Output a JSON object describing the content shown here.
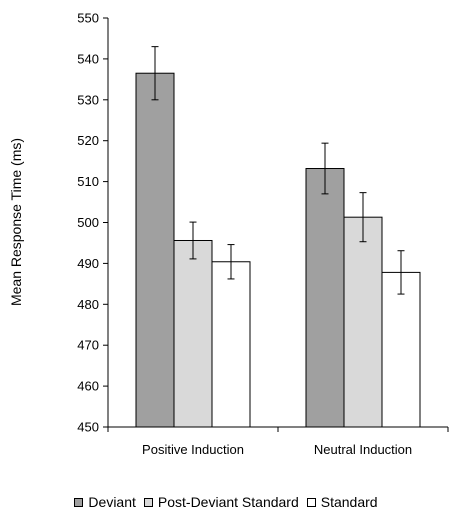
{
  "chart_data": {
    "type": "bar",
    "title": "",
    "xlabel": "",
    "ylabel": "Mean Response Time (ms)",
    "ylim": [
      450,
      550
    ],
    "yticks": [
      450,
      460,
      470,
      480,
      490,
      500,
      510,
      520,
      530,
      540,
      550
    ],
    "categories": [
      "Positive Induction",
      "Neutral Induction"
    ],
    "series": [
      {
        "name": "Deviant",
        "color": "#a0a0a0",
        "values": [
          536.5,
          513.2
        ],
        "errors": [
          6.5,
          6.2
        ]
      },
      {
        "name": "Post-Deviant Standard",
        "color": "#d9d9d9",
        "values": [
          495.6,
          501.3
        ],
        "errors": [
          4.5,
          6.0
        ]
      },
      {
        "name": "Standard",
        "color": "#ffffff",
        "values": [
          490.4,
          487.8
        ],
        "errors": [
          4.2,
          5.3
        ]
      }
    ],
    "grid": false,
    "error_bars": true,
    "legend_position": "bottom"
  }
}
